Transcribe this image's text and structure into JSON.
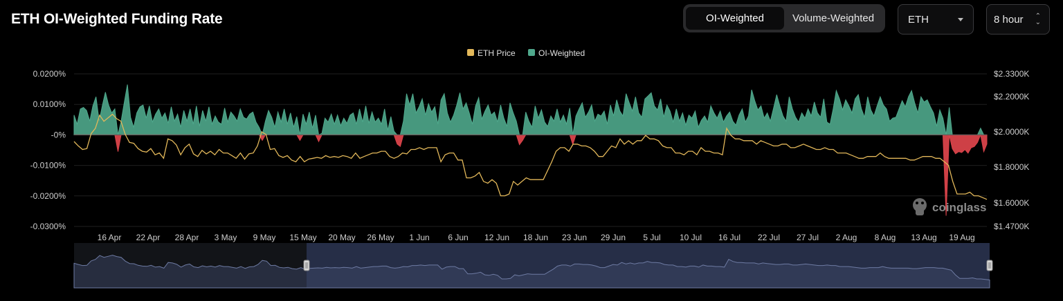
{
  "header": {
    "title": "ETH OI-Weighted Funding Rate",
    "tabs": [
      {
        "label": "OI-Weighted",
        "active": true
      },
      {
        "label": "Volume-Weighted",
        "active": false
      }
    ],
    "asset_select": "ETH",
    "interval_select": "8 hour"
  },
  "watermark": "coinglass",
  "colors": {
    "price": "#e3b85a",
    "funding_positive": "#4fa88c",
    "funding_negative": "#d9434a",
    "background": "#000000"
  },
  "chart_data": {
    "type": "area",
    "legend": {
      "placement": "top-center",
      "items": [
        "ETH Price",
        "OI-Weighted"
      ]
    },
    "x_ticks": [
      "16 Apr",
      "22 Apr",
      "28 Apr",
      "3 May",
      "9 May",
      "15 May",
      "20 May",
      "26 May",
      "1 Jun",
      "6 Jun",
      "12 Jun",
      "18 Jun",
      "23 Jun",
      "29 Jun",
      "5 Jul",
      "10 Jul",
      "16 Jul",
      "22 Jul",
      "27 Jul",
      "2 Aug",
      "8 Aug",
      "13 Aug",
      "19 Aug"
    ],
    "y_left": {
      "ticks": [
        "0.0200%",
        "0.0100%",
        "-0%",
        "-0.0100%",
        "-0.0200%",
        "-0.0300%"
      ],
      "range": [
        -0.03,
        0.02
      ],
      "unit": "%"
    },
    "y_right": {
      "ticks": [
        "$2.3300K",
        "$2.2000K",
        "$2.0000K",
        "$1.8000K",
        "$1.6000K",
        "$1.4700K"
      ],
      "tick_values": [
        2330,
        2200,
        2000,
        1800,
        1600,
        1470
      ],
      "unit": "$K"
    },
    "grid": "horizontal",
    "series": [
      {
        "name": "OI-Weighted",
        "axis": "left",
        "values": [
          0.0065,
          0.0035,
          0.0085,
          0.009,
          0.008,
          0.0045,
          0.0095,
          0.0125,
          0.0045,
          0.0095,
          0.014,
          0.0098,
          0.0072,
          0.0085,
          -0.0055,
          0.0045,
          0.0105,
          0.0165,
          0.0058,
          0.0025,
          0.0072,
          0.0092,
          0.0098,
          0.0055,
          0.0095,
          0.0042,
          0.0068,
          0.0085,
          0.0055,
          0.0072,
          0.0038,
          0.0092,
          0.0045,
          0.0068,
          0.0025,
          0.008,
          0.0045,
          0.0085,
          0.0035,
          0.0095,
          0.0028,
          0.008,
          0.0045,
          0.0092,
          0.0035,
          0.0062,
          0.0042,
          0.0035,
          0.0088,
          0.0042,
          0.0075,
          0.0062,
          0.0045,
          0.0085,
          0.0058,
          0.0052,
          0.0068,
          0.0075,
          0.0042,
          0.0025,
          -0.0018,
          0.0045,
          0.008,
          0.0058,
          0.0025,
          0.0075,
          0.0042,
          0.0085,
          0.0035,
          0.0072,
          0.0025,
          0.006,
          -0.0018,
          0.0068,
          0.0035,
          0.0075,
          0.0022,
          0.0065,
          -0.0022,
          0.0005,
          0.0055,
          0.0042,
          0.0068,
          0.0035,
          0.0065,
          0.003,
          0.0055,
          0.0038,
          0.0065,
          0.0072,
          0.0035,
          0.0085,
          0.0042,
          0.0095,
          0.0038,
          0.0075,
          0.0042,
          0.0055,
          0.0035,
          0.0085,
          0.0015,
          0.006,
          0.0012,
          -0.003,
          -0.0038,
          0.0045,
          0.0135,
          0.0098,
          0.0135,
          0.0072,
          0.0092,
          0.0118,
          0.0065,
          0.0102,
          0.0075,
          0.0092,
          0.0035,
          0.0115,
          0.0135,
          0.0072,
          0.0042,
          0.0065,
          0.0098,
          0.0138,
          0.0085,
          0.0105,
          0.0072,
          0.0035,
          0.0095,
          0.0122,
          0.0052,
          0.0078,
          0.0098,
          0.0065,
          0.0075,
          0.0042,
          0.0098,
          0.0055,
          0.0028,
          0.0105,
          0.0072,
          0.0045,
          -0.0032,
          -0.0018,
          0.0075,
          0.0045,
          0.0025,
          0.0095,
          0.0055,
          0.0082,
          0.0042,
          0.0028,
          0.0062,
          0.0045,
          0.0085,
          0.0042,
          0.0065,
          0.0035,
          0.0088,
          -0.0032,
          0.0062,
          0.0085,
          0.0105,
          0.0058,
          0.0075,
          0.0098,
          0.0045,
          0.0068,
          0.0062,
          0.0078,
          0.0035,
          0.0098,
          0.0062,
          0.0115,
          0.0078,
          0.0062,
          0.0135,
          0.0105,
          0.0078,
          0.0125,
          0.0072,
          0.0058,
          0.0118,
          0.0128,
          0.0138,
          0.0095,
          0.0082,
          0.0118,
          0.0058,
          0.0098,
          0.0078,
          0.0042,
          0.0085,
          0.0045,
          0.0072,
          0.0032,
          0.0065,
          0.0055,
          0.0078,
          0.0025,
          0.0048,
          0.0062,
          0.0042,
          0.0095,
          0.0072,
          0.0055,
          0.0078,
          0.0042,
          0.0062,
          0.0075,
          0.0045,
          0.0032,
          0.0065,
          0.0085,
          0.0042,
          0.0062,
          0.0148,
          0.0112,
          0.0082,
          0.0095,
          0.0055,
          0.0072,
          0.0045,
          0.0088,
          0.0132,
          0.0095,
          0.0062,
          0.0045,
          0.0125,
          0.0085,
          0.0058,
          0.0042,
          0.0072,
          0.0055,
          0.0085,
          0.0062,
          0.0108,
          0.0072,
          0.0058,
          0.0118,
          0.0042,
          0.0035,
          0.0085,
          0.0145,
          0.0118,
          0.0082,
          0.0115,
          0.0095,
          0.0072,
          0.0118,
          0.0132,
          0.0085,
          0.0058,
          0.0125,
          0.0082,
          0.0062,
          0.0095,
          0.0125,
          0.0098,
          0.0085,
          0.0045,
          0.0055,
          0.0058,
          0.0085,
          0.0112,
          0.0092,
          0.0125,
          0.0145,
          0.0105,
          0.0072,
          0.0125,
          0.0108,
          0.0115,
          0.0092,
          0.0072,
          0.0028,
          0.0082,
          0.0055,
          -0.0265,
          0.009,
          -0.0045,
          -0.0062,
          -0.0055,
          -0.0058,
          -0.0048,
          -0.006,
          -0.0042,
          -0.0038,
          -0.0025,
          0.0022,
          -0.0055,
          -0.003
        ]
      },
      {
        "name": "ETH Price",
        "axis": "right",
        "values": [
          1945,
          1920,
          1900,
          1905,
          1990,
          2020,
          2095,
          2060,
          2080,
          2100,
          2075,
          2060,
          1985,
          1940,
          1935,
          1905,
          1890,
          1885,
          1905,
          1870,
          1880,
          1850,
          1960,
          1950,
          1925,
          1870,
          1910,
          1930,
          1875,
          1860,
          1895,
          1875,
          1890,
          1870,
          1900,
          1880,
          1880,
          1865,
          1850,
          1880,
          1845,
          1875,
          1880,
          1920,
          2000,
          1985,
          1900,
          1905,
          1865,
          1855,
          1865,
          1840,
          1830,
          1860,
          1830,
          1845,
          1850,
          1855,
          1850,
          1865,
          1855,
          1860,
          1855,
          1865,
          1860,
          1850,
          1880,
          1850,
          1860,
          1870,
          1880,
          1880,
          1890,
          1890,
          1860,
          1850,
          1860,
          1880,
          1875,
          1900,
          1900,
          1910,
          1900,
          1910,
          1910,
          1910,
          1830,
          1870,
          1880,
          1880,
          1840,
          1840,
          1740,
          1740,
          1750,
          1770,
          1720,
          1710,
          1730,
          1710,
          1640,
          1640,
          1650,
          1720,
          1700,
          1720,
          1740,
          1730,
          1730,
          1730,
          1730,
          1780,
          1830,
          1890,
          1910,
          1910,
          1890,
          1930,
          1930,
          1920,
          1920,
          1910,
          1890,
          1860,
          1860,
          1890,
          1920,
          1910,
          1960,
          1930,
          1950,
          1930,
          1950,
          1950,
          1980,
          1960,
          1960,
          1950,
          1920,
          1910,
          1910,
          1880,
          1880,
          1870,
          1890,
          1890,
          1870,
          1910,
          1890,
          1890,
          1880,
          1880,
          1870,
          2020,
          1980,
          1960,
          1960,
          1950,
          1950,
          1950,
          1930,
          1950,
          1940,
          1930,
          1920,
          1920,
          1930,
          1930,
          1910,
          1910,
          1920,
          1930,
          1920,
          1910,
          1900,
          1900,
          1910,
          1900,
          1900,
          1880,
          1880,
          1880,
          1870,
          1860,
          1850,
          1850,
          1860,
          1860,
          1860,
          1880,
          1860,
          1850,
          1850,
          1850,
          1850,
          1850,
          1840,
          1840,
          1850,
          1860,
          1860,
          1860,
          1850,
          1850,
          1830,
          1810,
          1720,
          1650,
          1650,
          1650,
          1660,
          1640,
          1640,
          1630,
          1620
        ]
      }
    ],
    "navigator": {
      "selected_range": [
        "15 May",
        "end"
      ]
    }
  }
}
